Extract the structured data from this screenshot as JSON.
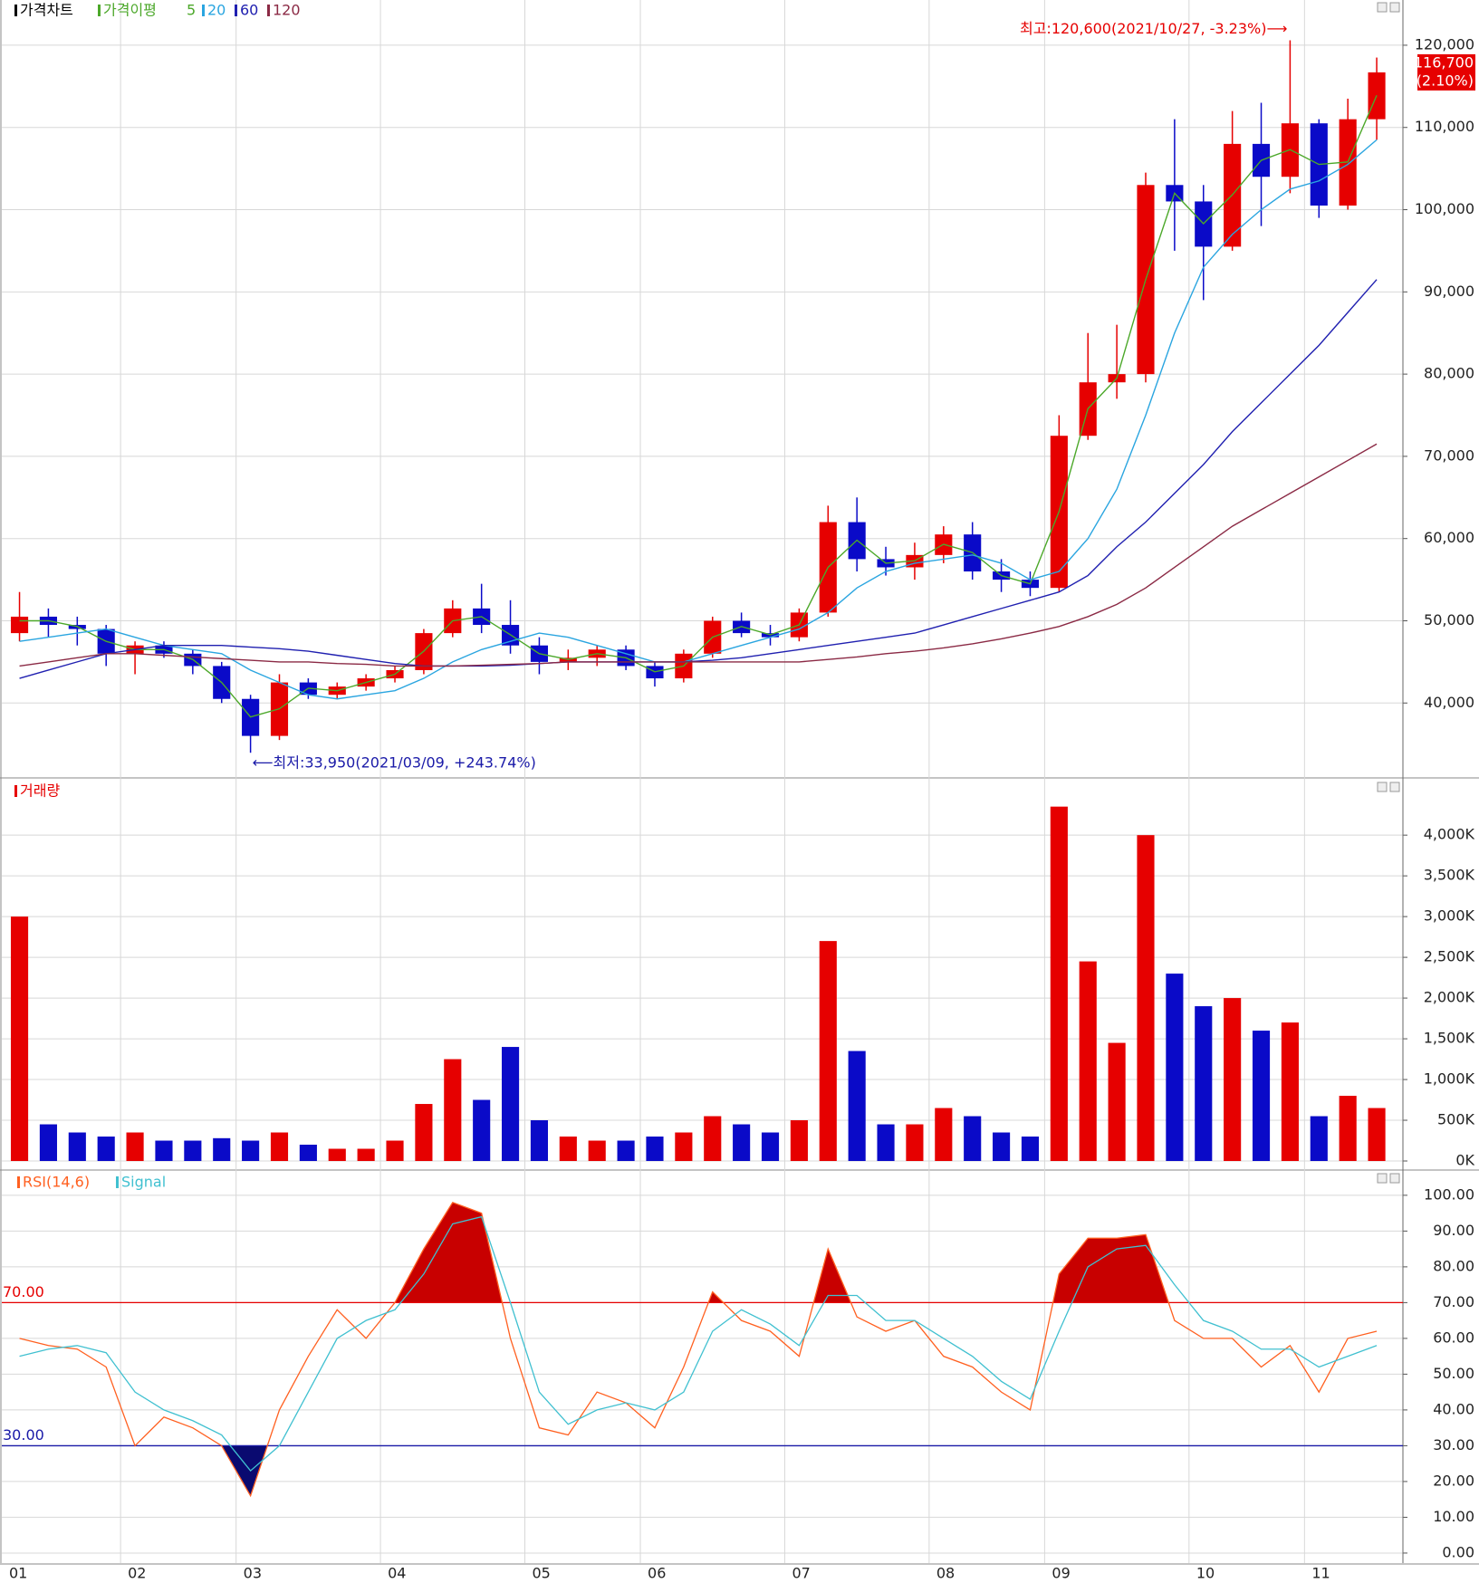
{
  "chart_data": [
    {
      "type": "candlestick",
      "title": "가격차트",
      "moving_average_label": "가격이평",
      "open": [
        48500,
        50500,
        49500,
        49000,
        46000,
        47000,
        46000,
        44500,
        40500,
        36000,
        42500,
        41000,
        42000,
        43000,
        44000,
        48500,
        51500,
        49500,
        47000,
        45000,
        45500,
        46500,
        44500,
        43000,
        46000,
        50000,
        48500,
        48000,
        51000,
        62000,
        57500,
        56500,
        58000,
        60500,
        56000,
        55000,
        54000,
        72500,
        79000,
        80000,
        103000,
        101000,
        95500,
        108000,
        104000,
        110500,
        100500,
        111000
      ],
      "high": [
        53500,
        51500,
        50500,
        49500,
        47500,
        47500,
        46500,
        45000,
        41000,
        43500,
        43000,
        42500,
        43500,
        44500,
        49000,
        52500,
        54500,
        52500,
        48000,
        46500,
        47000,
        47000,
        45000,
        46500,
        50500,
        51000,
        49500,
        51500,
        64000,
        65000,
        59000,
        59500,
        61500,
        62000,
        57500,
        56000,
        75000,
        85000,
        86000,
        104500,
        111000,
        103000,
        112000,
        113000,
        120600,
        111000,
        113500,
        118500
      ],
      "low": [
        47500,
        48000,
        47000,
        44500,
        43500,
        45500,
        43500,
        40000,
        33950,
        35500,
        40500,
        40500,
        41500,
        42500,
        43500,
        48000,
        48500,
        46000,
        43500,
        44000,
        44500,
        44000,
        42000,
        42500,
        45500,
        48000,
        47000,
        47500,
        50500,
        56000,
        55500,
        55000,
        57000,
        55000,
        53500,
        53000,
        53500,
        72000,
        77000,
        79000,
        95000,
        89000,
        95000,
        98000,
        102000,
        99000,
        100000,
        108500
      ],
      "close": [
        50500,
        49500,
        49000,
        46000,
        47000,
        46000,
        44500,
        40500,
        36000,
        42500,
        41000,
        42000,
        43000,
        44000,
        48500,
        51500,
        49500,
        47000,
        45000,
        45500,
        46500,
        44500,
        43000,
        46000,
        50000,
        48500,
        48000,
        51000,
        62000,
        57500,
        56500,
        58000,
        60500,
        56000,
        55000,
        54000,
        72500,
        79000,
        80000,
        103000,
        101000,
        95500,
        108000,
        104000,
        110500,
        100500,
        111000,
        116700
      ],
      "up_color": "#e60000",
      "down_color": "#0a0ac8",
      "series": [
        {
          "name": "5",
          "color": "#4ca82a",
          "values": [
            50000,
            50000,
            49300,
            47500,
            46500,
            46500,
            45300,
            42500,
            38300,
            39300,
            41800,
            41500,
            42500,
            43500,
            46300,
            50000,
            50500,
            48300,
            46000,
            45300,
            46000,
            45500,
            43800,
            44500,
            48000,
            49300,
            48300,
            49500,
            56500,
            59800,
            57000,
            57300,
            59300,
            58300,
            55500,
            54500,
            63300,
            75800,
            79500,
            91500,
            102000,
            98300,
            101800,
            106000,
            107300,
            105500,
            105800,
            113900
          ]
        },
        {
          "name": "20",
          "color": "#2aa5e0",
          "values": [
            47500,
            48000,
            48500,
            49000,
            48000,
            47000,
            46500,
            46000,
            44000,
            42500,
            41000,
            40500,
            41000,
            41500,
            43000,
            45000,
            46500,
            47500,
            48500,
            48000,
            47000,
            46000,
            45000,
            45000,
            46000,
            47000,
            48000,
            49000,
            51000,
            54000,
            56000,
            57000,
            57500,
            58000,
            57000,
            55000,
            56000,
            60000,
            66000,
            75000,
            85000,
            93000,
            97000,
            100000,
            102500,
            103500,
            105500,
            108500
          ]
        },
        {
          "name": "60",
          "color": "#2020b0",
          "values": [
            43000,
            44000,
            45000,
            46000,
            46500,
            47000,
            47000,
            47000,
            46800,
            46600,
            46300,
            45800,
            45300,
            44800,
            44500,
            44500,
            44500,
            44600,
            44800,
            45000,
            45000,
            45000,
            45000,
            45000,
            45200,
            45500,
            46000,
            46500,
            47000,
            47500,
            48000,
            48500,
            49500,
            50500,
            51500,
            52500,
            53500,
            55500,
            59000,
            62000,
            65500,
            69000,
            73000,
            76500,
            80000,
            83500,
            87500,
            91500
          ]
        },
        {
          "name": "120",
          "color": "#8b2a45",
          "values": [
            44500,
            45000,
            45500,
            46000,
            46000,
            45800,
            45600,
            45400,
            45200,
            45000,
            45000,
            44800,
            44700,
            44500,
            44500,
            44500,
            44600,
            44700,
            44800,
            45000,
            45000,
            45000,
            45000,
            45000,
            45000,
            45000,
            45000,
            45000,
            45300,
            45600,
            46000,
            46300,
            46700,
            47200,
            47800,
            48500,
            49300,
            50500,
            52000,
            54000,
            56500,
            59000,
            61500,
            63500,
            65500,
            67500,
            69500,
            71500
          ]
        }
      ],
      "ylim": [
        31000,
        125500
      ],
      "yticks": [
        {
          "value": 40000,
          "label": "40,000"
        },
        {
          "value": 50000,
          "label": "50,000"
        },
        {
          "value": 60000,
          "label": "60,000"
        },
        {
          "value": 70000,
          "label": "70,000"
        },
        {
          "value": 80000,
          "label": "80,000"
        },
        {
          "value": 90000,
          "label": "90,000"
        },
        {
          "value": 100000,
          "label": "100,000"
        },
        {
          "value": 110000,
          "label": "110,000"
        },
        {
          "value": 120000,
          "label": "120,000"
        }
      ],
      "grid": true,
      "high_annotation": "최고:120,600(2021/10/27, -3.23%)⟶",
      "low_annotation": "⟵최저:33,950(2021/03/09, +243.74%)",
      "last_price_label": "116,700",
      "last_change_label": "(2.10%)"
    },
    {
      "type": "bar",
      "title": "거래량",
      "title_color": "#e60000",
      "values": [
        3000,
        450,
        350,
        300,
        350,
        250,
        250,
        280,
        250,
        350,
        200,
        150,
        150,
        250,
        700,
        1250,
        750,
        1400,
        500,
        300,
        250,
        250,
        300,
        350,
        550,
        450,
        350,
        500,
        2700,
        1350,
        450,
        450,
        650,
        550,
        350,
        300,
        4350,
        2450,
        1450,
        4000,
        2300,
        1900,
        2000,
        1600,
        1700,
        550,
        800,
        650
      ],
      "up_color": "#e60000",
      "down_color": "#0a0ac8",
      "ylim": [
        -100,
        4680
      ],
      "yticks": [
        {
          "value": 0,
          "label": "0K"
        },
        {
          "value": 500,
          "label": "500K"
        },
        {
          "value": 1000,
          "label": "1,000K"
        },
        {
          "value": 1500,
          "label": "1,500K"
        },
        {
          "value": 2000,
          "label": "2,000K"
        },
        {
          "value": 2500,
          "label": "2,500K"
        },
        {
          "value": 3000,
          "label": "3,000K"
        },
        {
          "value": 3500,
          "label": "3,500K"
        },
        {
          "value": 4000,
          "label": "4,000K"
        }
      ],
      "grid": true
    },
    {
      "type": "line",
      "categories": [
        "01",
        null,
        null,
        null,
        "02",
        null,
        null,
        null,
        "03",
        null,
        null,
        null,
        null,
        "04",
        null,
        null,
        null,
        null,
        "05",
        null,
        null,
        null,
        "06",
        null,
        null,
        null,
        null,
        "07",
        null,
        null,
        null,
        null,
        "08",
        null,
        null,
        null,
        "09",
        null,
        null,
        null,
        null,
        "10",
        null,
        null,
        null,
        "11",
        null,
        null
      ],
      "series": [
        {
          "name": "RSI(14,6)",
          "color": "#ff6020",
          "values": [
            60,
            58,
            57,
            52,
            30,
            38,
            35,
            30,
            16,
            40,
            55,
            68,
            60,
            70,
            85,
            98,
            95,
            60,
            35,
            33,
            45,
            42,
            35,
            52,
            73,
            65,
            62,
            55,
            85,
            66,
            62,
            65,
            55,
            52,
            45,
            40,
            78,
            88,
            88,
            89,
            65,
            60,
            60,
            52,
            58,
            45,
            60,
            62
          ]
        },
        {
          "name": "Signal",
          "color": "#40c0d0",
          "values": [
            55,
            57,
            58,
            56,
            45,
            40,
            37,
            33,
            23,
            30,
            45,
            60,
            65,
            68,
            78,
            92,
            94,
            70,
            45,
            36,
            40,
            42,
            40,
            45,
            62,
            68,
            64,
            58,
            72,
            72,
            65,
            65,
            60,
            55,
            48,
            43,
            62,
            80,
            85,
            86,
            75,
            65,
            62,
            57,
            57,
            52,
            55,
            58
          ]
        }
      ],
      "levels": [
        {
          "value": 70,
          "label": "70.00",
          "color": "#e60000",
          "fill": "#c80000"
        },
        {
          "value": 30,
          "label": "30.00",
          "color": "#1a1aa8",
          "fill": "#0a0a70"
        }
      ],
      "ylim": [
        -2.8,
        106.8
      ],
      "yticks": [
        {
          "value": 0,
          "label": "0.00"
        },
        {
          "value": 10,
          "label": "10.00"
        },
        {
          "value": 20,
          "label": "20.00"
        },
        {
          "value": 30,
          "label": "30.00"
        },
        {
          "value": 40,
          "label": "40.00"
        },
        {
          "value": 50,
          "label": "50.00"
        },
        {
          "value": 60,
          "label": "60.00"
        },
        {
          "value": 70,
          "label": "70.00"
        },
        {
          "value": 80,
          "label": "80.00"
        },
        {
          "value": 90,
          "label": "90.00"
        },
        {
          "value": 100,
          "label": "100.00"
        }
      ],
      "grid": true
    }
  ]
}
